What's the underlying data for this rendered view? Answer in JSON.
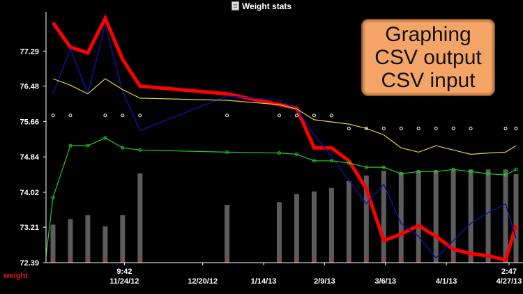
{
  "window": {
    "title": "Weight stats",
    "icon": "document-icon"
  },
  "callout": {
    "lines": [
      "Graphing",
      "CSV output",
      "CSV input"
    ]
  },
  "series_label": "weight",
  "colors": {
    "background": "#000000",
    "bars": "#5c5c5c",
    "red": "#ff0000",
    "blue": "#1010a0",
    "yellow": "#e6d33c",
    "green": "#22cc22",
    "axis": "#ffffff",
    "marker": "#dd2222"
  },
  "chart_data": {
    "type": "line",
    "title": "Weight stats",
    "ylabel": "weight",
    "ylim": [
      72.39,
      78.2
    ],
    "yticks": [
      "77.29",
      "76.48",
      "75.66",
      "74.84",
      "74.02",
      "73.21",
      "72.39"
    ],
    "xticks": [
      {
        "top": "9:42",
        "bottom": "11/24/12",
        "x": 4.5
      },
      {
        "top": "",
        "bottom": "12/20/12",
        "x": 9
      },
      {
        "top": "",
        "bottom": "1/14/13",
        "x": 12.5
      },
      {
        "top": "",
        "bottom": "2/9/13",
        "x": 16
      },
      {
        "top": "",
        "bottom": "3/6/13",
        "x": 19.5
      },
      {
        "top": "",
        "bottom": "4/1/13",
        "x": 23
      },
      {
        "top": "2:47",
        "bottom": "4/27/13",
        "x": 26.6
      }
    ],
    "xlim": [
      0,
      27
    ],
    "series": [
      {
        "name": "weight",
        "color": "#ff0000",
        "x": [
          0.4,
          1.4,
          2.4,
          3.4,
          4.4,
          5.4,
          10.4,
          13.4,
          14.4,
          15.4,
          16.4,
          17.4,
          18.4,
          19.4,
          20.4,
          21.4,
          22.4,
          23.4,
          24.4,
          25.4,
          26.4,
          27
        ],
        "y": [
          77.95,
          77.38,
          77.25,
          78.05,
          77.1,
          76.48,
          76.3,
          76.05,
          75.97,
          75.05,
          75.05,
          74.75,
          74.1,
          72.9,
          73.05,
          73.25,
          73.0,
          72.7,
          72.6,
          72.55,
          72.45,
          73.26
        ]
      },
      {
        "name": "trend-blue",
        "color": "#1010a0",
        "x": [
          0.4,
          1.4,
          2.4,
          3.4,
          4.4,
          5.4,
          10.4,
          13.4,
          14.4,
          15.4,
          16.4,
          17.4,
          18.4,
          19.4,
          20.4,
          21.4,
          22.4,
          23.4,
          24.4,
          25.4,
          26.4,
          27
        ],
        "y": [
          76.3,
          77.35,
          76.3,
          77.9,
          76.35,
          75.45,
          76.25,
          76.15,
          75.95,
          75.35,
          74.85,
          74.3,
          73.75,
          74.2,
          73.3,
          73.0,
          72.5,
          72.9,
          73.3,
          73.55,
          73.75,
          72.95
        ]
      },
      {
        "name": "average-yellow",
        "color": "#e6d33c",
        "x": [
          0.4,
          1.4,
          2.4,
          3.4,
          4.4,
          5.4,
          10.4,
          13.4,
          14.4,
          15.4,
          16.4,
          17.4,
          18.4,
          19.4,
          20.4,
          21.4,
          22.4,
          23.4,
          24.4,
          25.4,
          26.4,
          27
        ],
        "y": [
          76.65,
          76.5,
          76.3,
          76.65,
          76.4,
          76.2,
          76.15,
          76.05,
          75.95,
          75.7,
          75.65,
          75.6,
          75.5,
          75.35,
          75.05,
          74.95,
          75.1,
          75.0,
          74.9,
          74.93,
          74.95,
          75.1
        ]
      },
      {
        "name": "average-green",
        "color": "#22cc22",
        "markers": "circle",
        "x": [
          0,
          0.4,
          1.4,
          2.4,
          3.4,
          4.4,
          5.4,
          10.4,
          13.4,
          14.4,
          15.4,
          16.4,
          17.4,
          18.4,
          19.4,
          20.4,
          21.4,
          22.4,
          23.4,
          24.4,
          25.4,
          26.4,
          27
        ],
        "y": [
          72.55,
          73.9,
          75.1,
          75.1,
          75.28,
          75.05,
          75.0,
          74.95,
          74.93,
          74.9,
          74.75,
          74.75,
          74.7,
          74.6,
          74.6,
          74.45,
          74.5,
          74.5,
          74.55,
          74.5,
          74.45,
          74.42,
          74.55
        ]
      },
      {
        "name": "markers-white",
        "color": "#ffffff",
        "markers": "open-circle",
        "x": [
          0.4,
          1.4,
          3.4,
          4.4,
          5.4,
          10.4,
          13.4,
          14.4,
          15.4,
          16.4,
          17.4,
          18.4,
          19.4,
          20.4,
          21.4,
          22.4,
          23.4,
          24.4,
          26.4,
          27
        ],
        "y": [
          75.8,
          75.8,
          75.8,
          75.8,
          75.8,
          75.8,
          75.8,
          75.8,
          75.8,
          75.8,
          75.5,
          75.5,
          75.5,
          75.5,
          75.5,
          75.5,
          75.5,
          75.5,
          75.5,
          75.5
        ]
      },
      {
        "name": "bars-gray",
        "color": "#5c5c5c",
        "type": "bar",
        "x": [
          0.4,
          1.4,
          2.4,
          3.4,
          4.4,
          5.4,
          10.4,
          13.4,
          14.4,
          15.4,
          16.4,
          17.4,
          18.4,
          19.4,
          20.4,
          21.4,
          22.4,
          23.4,
          24.4,
          25.4,
          26.4,
          27
        ],
        "y": [
          73.27,
          73.4,
          73.49,
          73.23,
          73.49,
          74.46,
          73.73,
          73.79,
          73.98,
          74.04,
          74.12,
          74.28,
          74.41,
          74.52,
          74.48,
          74.52,
          74.52,
          74.55,
          74.55,
          74.55,
          74.55,
          74.44
        ]
      }
    ]
  }
}
